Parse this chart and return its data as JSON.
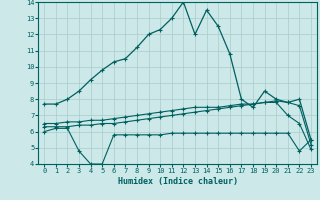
{
  "xlabel": "Humidex (Indice chaleur)",
  "bg_color": "#cce8e8",
  "grid_color": "#aacccc",
  "line_color": "#006060",
  "xlim": [
    -0.5,
    23.5
  ],
  "ylim": [
    4,
    14
  ],
  "yticks": [
    4,
    5,
    6,
    7,
    8,
    9,
    10,
    11,
    12,
    13,
    14
  ],
  "xticks": [
    0,
    1,
    2,
    3,
    4,
    5,
    6,
    7,
    8,
    9,
    10,
    11,
    12,
    13,
    14,
    15,
    16,
    17,
    18,
    19,
    20,
    21,
    22,
    23
  ],
  "curve1_x": [
    0,
    1,
    2,
    3,
    4,
    5,
    6,
    7,
    8,
    9,
    10,
    11,
    12,
    13,
    14,
    15,
    16,
    17,
    18,
    19,
    20,
    21,
    22,
    23
  ],
  "curve1_y": [
    7.7,
    7.7,
    8.0,
    8.5,
    9.2,
    9.8,
    10.3,
    10.5,
    11.2,
    12.0,
    12.3,
    13.0,
    14.0,
    12.0,
    13.5,
    12.5,
    10.8,
    8.0,
    7.5,
    8.5,
    8.0,
    7.8,
    8.0,
    5.5
  ],
  "curve2_x": [
    0,
    1,
    2,
    3,
    4,
    5,
    6,
    7,
    8,
    9,
    10,
    11,
    12,
    13,
    14,
    15,
    16,
    17,
    18,
    19,
    20,
    21,
    22,
    23
  ],
  "curve2_y": [
    6.3,
    6.3,
    6.3,
    6.4,
    6.4,
    6.5,
    6.5,
    6.6,
    6.7,
    6.8,
    6.9,
    7.0,
    7.1,
    7.2,
    7.3,
    7.4,
    7.5,
    7.6,
    7.7,
    7.8,
    7.9,
    7.8,
    7.6,
    5.2
  ],
  "curve3_x": [
    0,
    1,
    2,
    3,
    4,
    5,
    6,
    7,
    8,
    9,
    10,
    11,
    12,
    13,
    14,
    15,
    16,
    17,
    18,
    19,
    20,
    21,
    22,
    23
  ],
  "curve3_y": [
    6.5,
    6.5,
    6.6,
    6.6,
    6.7,
    6.7,
    6.8,
    6.9,
    7.0,
    7.1,
    7.2,
    7.3,
    7.4,
    7.5,
    7.5,
    7.5,
    7.6,
    7.7,
    7.7,
    7.8,
    7.8,
    7.0,
    6.5,
    4.9
  ],
  "curve4_x": [
    0,
    1,
    2,
    3,
    4,
    5,
    6,
    7,
    8,
    9,
    10,
    11,
    12,
    13,
    14,
    15,
    16,
    17,
    18,
    19,
    20,
    21,
    22,
    23
  ],
  "curve4_y": [
    6.0,
    6.2,
    6.2,
    4.8,
    4.0,
    4.0,
    5.8,
    5.8,
    5.8,
    5.8,
    5.8,
    5.9,
    5.9,
    5.9,
    5.9,
    5.9,
    5.9,
    5.9,
    5.9,
    5.9,
    5.9,
    5.9,
    4.8,
    5.5
  ]
}
